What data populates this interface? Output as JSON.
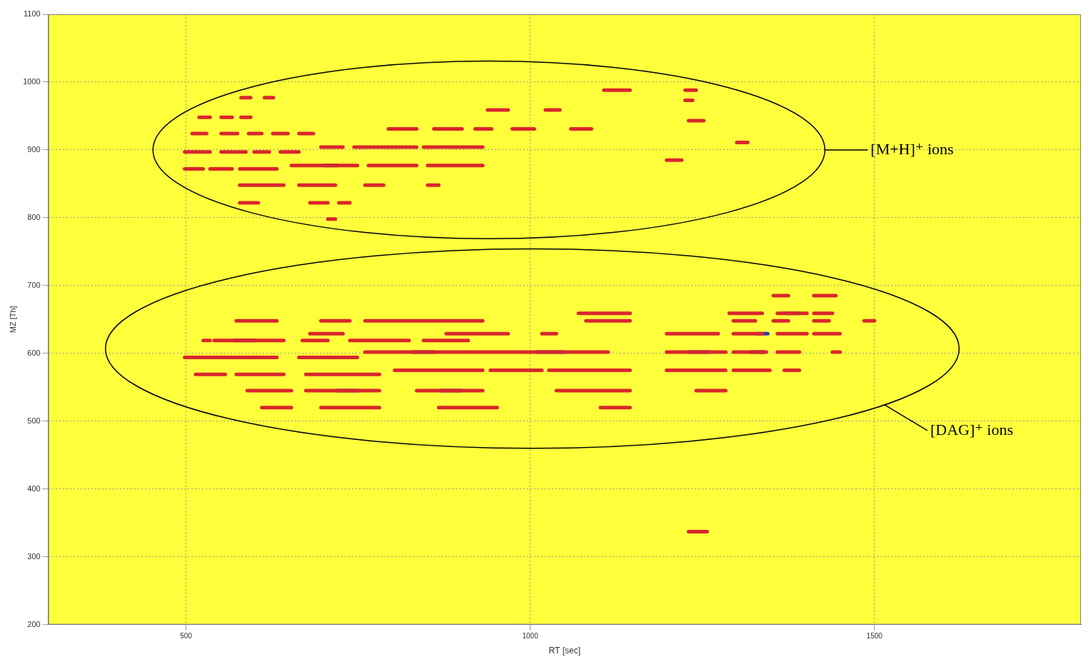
{
  "chart_data": {
    "type": "scatter",
    "x_label": "RT [sec]",
    "y_label": "MZ [Th]",
    "xlim": [
      300,
      1800
    ],
    "xticks": [
      500,
      1000,
      1500
    ],
    "ylim": [
      200,
      1100
    ],
    "yticks": [
      200,
      300,
      400,
      500,
      600,
      700,
      800,
      900,
      1000,
      1100
    ],
    "grid": true,
    "series": [
      {
        "color": "#d9262c",
        "streaks": [
          {
            "rt": [
              580,
              594
            ],
            "mz": 977
          },
          {
            "rt": [
              614,
              627
            ],
            "mz": 977
          },
          {
            "rt": [
              1107,
              1145
            ],
            "mz": 988
          },
          {
            "rt": [
              1225,
              1241
            ],
            "mz": 988
          },
          {
            "rt": [
              938,
              968
            ],
            "mz": 959
          },
          {
            "rt": [
              1022,
              1043
            ],
            "mz": 959
          },
          {
            "rt": [
              519,
              535
            ],
            "mz": 948
          },
          {
            "rt": [
              551,
              567
            ],
            "mz": 948
          },
          {
            "rt": [
              580,
              594
            ],
            "mz": 948
          },
          {
            "rt": [
              794,
              835
            ],
            "mz": 931
          },
          {
            "rt": [
              860,
              901
            ],
            "mz": 931
          },
          {
            "rt": [
              920,
              944
            ],
            "mz": 931
          },
          {
            "rt": [
              974,
              1006
            ],
            "mz": 931
          },
          {
            "rt": [
              1059,
              1089
            ],
            "mz": 931
          },
          {
            "rt": [
              509,
              530
            ],
            "mz": 924
          },
          {
            "rt": [
              551,
              575
            ],
            "mz": 924
          },
          {
            "rt": [
              591,
              610
            ],
            "mz": 924
          },
          {
            "rt": [
              626,
              648
            ],
            "mz": 924
          },
          {
            "rt": [
              664,
              685
            ],
            "mz": 924
          },
          {
            "rt": [
              696,
              728
            ],
            "mz": 904
          },
          {
            "rt": [
              744,
              835
            ],
            "mz": 904
          },
          {
            "rt": [
              845,
              931
            ],
            "mz": 904
          },
          {
            "rt": [
              498,
              535
            ],
            "mz": 897
          },
          {
            "rt": [
              551,
              587
            ],
            "mz": 897
          },
          {
            "rt": [
              599,
              621
            ],
            "mz": 897
          },
          {
            "rt": [
              637,
              664
            ],
            "mz": 897
          },
          {
            "rt": [
              653,
              749
            ],
            "mz": 877
          },
          {
            "rt": [
              765,
              835
            ],
            "mz": 877
          },
          {
            "rt": [
              851,
              931
            ],
            "mz": 877
          },
          {
            "rt": [
              498,
              525
            ],
            "mz": 872
          },
          {
            "rt": [
              535,
              567
            ],
            "mz": 872
          },
          {
            "rt": [
              578,
              632
            ],
            "mz": 872
          },
          {
            "rt": [
              578,
              642
            ],
            "mz": 848
          },
          {
            "rt": [
              664,
              717
            ],
            "mz": 848
          },
          {
            "rt": [
              760,
              787
            ],
            "mz": 848
          },
          {
            "rt": [
              851,
              867
            ],
            "mz": 848
          },
          {
            "rt": [
              578,
              605
            ],
            "mz": 822
          },
          {
            "rt": [
              680,
              706
            ],
            "mz": 822
          },
          {
            "rt": [
              722,
              738
            ],
            "mz": 822
          },
          {
            "rt": [
              706,
              717
            ],
            "mz": 798
          },
          {
            "rt": [
              1198,
              1220
            ],
            "mz": 885
          },
          {
            "rt": [
              1300,
              1316
            ],
            "mz": 911
          },
          {
            "rt": [
              1230,
              1252
            ],
            "mz": 943
          },
          {
            "rt": [
              1225,
              1236
            ],
            "mz": 973
          },
          {
            "rt": [
              1353,
              1375
            ],
            "mz": 685
          },
          {
            "rt": [
              1412,
              1444
            ],
            "mz": 685
          },
          {
            "rt": [
              1070,
              1145
            ],
            "mz": 659
          },
          {
            "rt": [
              1289,
              1337
            ],
            "mz": 659
          },
          {
            "rt": [
              1359,
              1402
            ],
            "mz": 659
          },
          {
            "rt": [
              1412,
              1439
            ],
            "mz": 659
          },
          {
            "rt": [
              573,
              632
            ],
            "mz": 648
          },
          {
            "rt": [
              696,
              738
            ],
            "mz": 648
          },
          {
            "rt": [
              760,
              931
            ],
            "mz": 648
          },
          {
            "rt": [
              1081,
              1145
            ],
            "mz": 648
          },
          {
            "rt": [
              1295,
              1327
            ],
            "mz": 648
          },
          {
            "rt": [
              1353,
              1375
            ],
            "mz": 648
          },
          {
            "rt": [
              1412,
              1434
            ],
            "mz": 648
          },
          {
            "rt": [
              1485,
              1500
            ],
            "mz": 648
          },
          {
            "rt": [
              680,
              728
            ],
            "mz": 629
          },
          {
            "rt": [
              878,
              968
            ],
            "mz": 629
          },
          {
            "rt": [
              1017,
              1038
            ],
            "mz": 629
          },
          {
            "rt": [
              1198,
              1273
            ],
            "mz": 629
          },
          {
            "rt": [
              1295,
              1337
            ],
            "mz": 629
          },
          {
            "rt": [
              1359,
              1402
            ],
            "mz": 629
          },
          {
            "rt": [
              1412,
              1450
            ],
            "mz": 629
          },
          {
            "rt": [
              525,
              535
            ],
            "mz": 619
          },
          {
            "rt": [
              541,
              642
            ],
            "mz": 619
          },
          {
            "rt": [
              669,
              706
            ],
            "mz": 619
          },
          {
            "rt": [
              738,
              824
            ],
            "mz": 619
          },
          {
            "rt": [
              845,
              910
            ],
            "mz": 619
          },
          {
            "rt": [
              760,
              995
            ],
            "mz": 602
          },
          {
            "rt": [
              995,
              1113
            ],
            "mz": 602
          },
          {
            "rt": [
              1198,
              1284
            ],
            "mz": 602
          },
          {
            "rt": [
              1295,
              1343
            ],
            "mz": 602
          },
          {
            "rt": [
              1359,
              1391
            ],
            "mz": 602
          },
          {
            "rt": [
              1439,
              1450
            ],
            "mz": 602
          },
          {
            "rt": [
              498,
              632
            ],
            "mz": 594
          },
          {
            "rt": [
              664,
              749
            ],
            "mz": 594
          },
          {
            "rt": [
              803,
              931
            ],
            "mz": 575
          },
          {
            "rt": [
              942,
              1017
            ],
            "mz": 575
          },
          {
            "rt": [
              1027,
              1145
            ],
            "mz": 575
          },
          {
            "rt": [
              1198,
              1284
            ],
            "mz": 575
          },
          {
            "rt": [
              1295,
              1348
            ],
            "mz": 575
          },
          {
            "rt": [
              1369,
              1391
            ],
            "mz": 575
          },
          {
            "rt": [
              514,
              557
            ],
            "mz": 569
          },
          {
            "rt": [
              573,
              642
            ],
            "mz": 569
          },
          {
            "rt": [
              674,
              781
            ],
            "mz": 569
          },
          {
            "rt": [
              589,
              653
            ],
            "mz": 545
          },
          {
            "rt": [
              674,
              781
            ],
            "mz": 545
          },
          {
            "rt": [
              835,
              931
            ],
            "mz": 545
          },
          {
            "rt": [
              1038,
              1145
            ],
            "mz": 545
          },
          {
            "rt": [
              1241,
              1284
            ],
            "mz": 545
          },
          {
            "rt": [
              610,
              653
            ],
            "mz": 520
          },
          {
            "rt": [
              696,
              781
            ],
            "mz": 520
          },
          {
            "rt": [
              867,
              952
            ],
            "mz": 520
          },
          {
            "rt": [
              1102,
              1145
            ],
            "mz": 520
          },
          {
            "rt": [
              1230,
              1257
            ],
            "mz": 337
          }
        ]
      },
      {
        "color": "#3434b4",
        "streaks": [
          {
            "rt": [
              830,
              860
            ],
            "mz": 602
          },
          {
            "rt": [
              1010,
              1050
            ],
            "mz": 602
          },
          {
            "rt": [
              1230,
              1260
            ],
            "mz": 602
          },
          {
            "rt": [
              1320,
              1340
            ],
            "mz": 602
          },
          {
            "rt": [
              870,
              900
            ],
            "mz": 575
          },
          {
            "rt": [
              1060,
              1090
            ],
            "mz": 575
          },
          {
            "rt": [
              720,
              750
            ],
            "mz": 545
          },
          {
            "rt": [
              870,
              900
            ],
            "mz": 545
          },
          {
            "rt": [
              1330,
              1345
            ],
            "mz": 629
          },
          {
            "rt": [
              1370,
              1390
            ],
            "mz": 659
          },
          {
            "rt": [
              700,
              720
            ],
            "mz": 877
          },
          {
            "rt": [
              570,
              600
            ],
            "mz": 619
          }
        ]
      }
    ],
    "annotations": [
      {
        "label": "[M+H]⁺ ions",
        "center": [
          940,
          900
        ],
        "radius": [
          488,
          131
        ]
      },
      {
        "label": "[DAG]⁺ ions",
        "center": [
          1003,
          607
        ],
        "radius": [
          620,
          147
        ]
      }
    ]
  }
}
